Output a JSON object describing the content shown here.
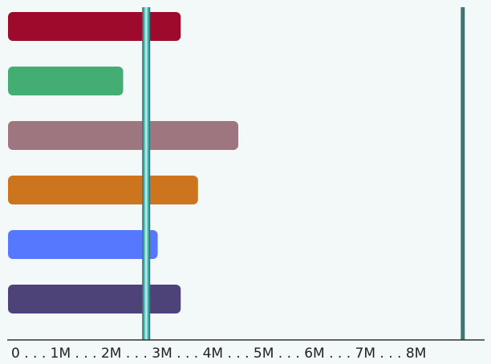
{
  "chart_data": {
    "type": "bar",
    "orientation": "horizontal",
    "title": "",
    "xlabel": "",
    "ylabel": "",
    "xlim": [
      0,
      8000000
    ],
    "grid": false,
    "legend": "none",
    "bars": [
      {
        "value": 3000000,
        "color": "#9e0a2c"
      },
      {
        "value": 2000000,
        "color": "#43ad73"
      },
      {
        "value": 4000000,
        "color": "#9d7680"
      },
      {
        "value": 3300000,
        "color": "#cc741e"
      },
      {
        "value": 2600000,
        "color": "#5677ff"
      },
      {
        "value": 3000000,
        "color": "#4d4379"
      }
    ],
    "tick_label_text": "0 . . . 1M . . . 2M . . . 3M . . . 4M . . . 5M . . . 6M . . . 7M . . . 8M",
    "reference_lines": [
      {
        "value": 2400000,
        "color": "#5ec6c2",
        "style": "highlight"
      },
      {
        "value": 7900000,
        "color": "#3f7575",
        "style": "plain"
      }
    ],
    "axis_color": "#333333"
  }
}
